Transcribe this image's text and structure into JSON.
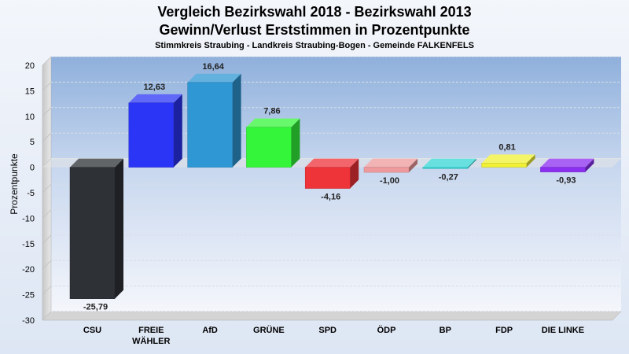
{
  "chart_data": {
    "type": "bar",
    "title": "Vergleich Bezirkswahl 2018 - Bezirkswahl 2013",
    "title2": "Gewinn/Verlust Erststimmen in Prozentpunkte",
    "subtitle": "Stimmkreis Straubing - Landkreis Straubing-Bogen - Gemeinde FALKENFELS",
    "ylabel": "Prozentpunkte",
    "ylim": [
      -30,
      20
    ],
    "yticks": [
      20,
      15,
      10,
      5,
      0,
      -5,
      -10,
      -15,
      -20,
      -25,
      -30
    ],
    "grid": true,
    "categories": [
      {
        "label": [
          "CSU"
        ],
        "value": -25.79,
        "display": "-25,79",
        "color": "#2e3136"
      },
      {
        "label": [
          "FREIE",
          "WÄHLER"
        ],
        "value": 12.63,
        "display": "12,63",
        "color": "#2b35f5"
      },
      {
        "label": [
          "AfD"
        ],
        "value": 16.64,
        "display": "16,64",
        "color": "#2e97d4"
      },
      {
        "label": [
          "GRÜNE"
        ],
        "value": 7.86,
        "display": "7,86",
        "color": "#35f53a"
      },
      {
        "label": [
          "SPD"
        ],
        "value": -4.16,
        "display": "-4,16",
        "color": "#ee3339"
      },
      {
        "label": [
          "ÖDP"
        ],
        "value": -1.0,
        "display": "-1,00",
        "color": "#ee9a9c"
      },
      {
        "label": [
          "BP"
        ],
        "value": -0.27,
        "display": "-0,27",
        "color": "#35d6d6"
      },
      {
        "label": [
          "FDP"
        ],
        "value": 0.81,
        "display": "0,81",
        "color": "#f0f035"
      },
      {
        "label": [
          "DIE LINKE"
        ],
        "value": -0.93,
        "display": "-0,93",
        "color": "#8b2ff0"
      }
    ]
  }
}
